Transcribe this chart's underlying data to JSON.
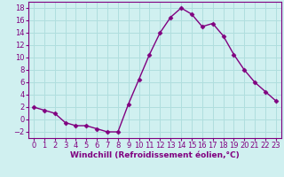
{
  "x": [
    0,
    1,
    2,
    3,
    4,
    5,
    6,
    7,
    8,
    9,
    10,
    11,
    12,
    13,
    14,
    15,
    16,
    17,
    18,
    19,
    20,
    21,
    22,
    23
  ],
  "y": [
    2,
    1.5,
    1,
    -0.5,
    -1,
    -1,
    -1.5,
    -2,
    -2,
    2.5,
    6.5,
    10.5,
    14,
    16.5,
    18,
    17,
    15,
    15.5,
    13.5,
    10.5,
    8,
    6,
    4.5,
    3
  ],
  "line_color": "#800080",
  "marker": "D",
  "marker_size": 2.5,
  "bg_color": "#d0f0f0",
  "grid_color": "#b0dede",
  "xlabel": "Windchill (Refroidissement éolien,°C)",
  "xlabel_fontsize": 6.5,
  "tick_fontsize": 6,
  "ylim": [
    -3,
    19
  ],
  "yticks": [
    -2,
    0,
    2,
    4,
    6,
    8,
    10,
    12,
    14,
    16,
    18
  ],
  "xticks": [
    0,
    1,
    2,
    3,
    4,
    5,
    6,
    7,
    8,
    9,
    10,
    11,
    12,
    13,
    14,
    15,
    16,
    17,
    18,
    19,
    20,
    21,
    22,
    23
  ],
  "linewidth": 1.0
}
